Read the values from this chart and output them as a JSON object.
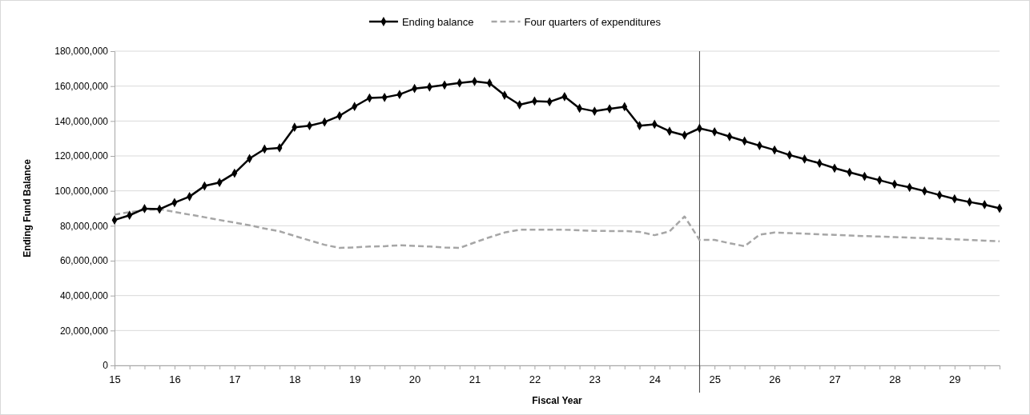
{
  "chart_data": {
    "type": "line",
    "xlabel": "Fiscal Year",
    "ylabel": "Ending Fund Balance",
    "x": [
      15,
      15.25,
      15.5,
      15.75,
      16,
      16.25,
      16.5,
      16.75,
      17,
      17.25,
      17.5,
      17.75,
      18,
      18.25,
      18.5,
      18.75,
      19,
      19.25,
      19.5,
      19.75,
      20,
      20.25,
      20.5,
      20.75,
      21,
      21.25,
      21.5,
      21.75,
      22,
      22.25,
      22.5,
      22.75,
      23,
      23.25,
      23.5,
      23.75,
      24,
      24.25,
      24.5,
      24.75,
      25,
      25.25,
      25.5,
      25.75,
      26,
      26.25,
      26.5,
      26.75,
      27,
      27.25,
      27.5,
      27.75,
      28,
      28.25,
      28.5,
      28.75,
      29,
      29.25,
      29.5,
      29.75
    ],
    "series": [
      {
        "name": "Ending balance",
        "color": "#000000",
        "marker": "diamond",
        "line_style": "solid",
        "values": [
          83300000,
          86000000,
          89800000,
          89500000,
          93300000,
          96700000,
          102800000,
          104800000,
          110100000,
          118500000,
          123900000,
          124600000,
          136400000,
          137300000,
          139400000,
          143000000,
          148300000,
          153200000,
          153500000,
          155200000,
          158600000,
          159500000,
          160600000,
          161800000,
          162700000,
          161700000,
          154800000,
          149300000,
          151400000,
          151000000,
          154000000,
          147300000,
          145600000,
          147000000,
          148200000,
          137300000,
          138100000,
          134100000,
          131800000,
          135800000,
          133800000,
          131100000,
          128500000,
          125900000,
          123400000,
          120500000,
          118200000,
          115800000,
          113000000,
          110600000,
          108300000,
          106100000,
          103800000,
          102000000,
          99900000,
          97600000,
          95400000,
          93600000,
          92100000,
          90000000
        ]
      },
      {
        "name": "Four quarters of expenditures",
        "color": "#a6a6a6",
        "marker": "none",
        "line_style": "dashed",
        "values": [
          86400000,
          87800000,
          89000000,
          89500000,
          87900000,
          86400000,
          84900000,
          83300000,
          81800000,
          80300000,
          78400000,
          76800000,
          74200000,
          71600000,
          69100000,
          67300000,
          67600000,
          68100000,
          68300000,
          68800000,
          68500000,
          68100000,
          67600000,
          67300000,
          70400000,
          73400000,
          76100000,
          77700000,
          77700000,
          77700000,
          77700000,
          77400000,
          77100000,
          77000000,
          77000000,
          76500000,
          74600000,
          76800000,
          85300000,
          71900000,
          71900000,
          70000000,
          68300000,
          74900000,
          76100000,
          75800000,
          75500000,
          75100000,
          74800000,
          74400000,
          74100000,
          73800000,
          73500000,
          73200000,
          72900000,
          72600000,
          72200000,
          71900000,
          71500000,
          71100000
        ]
      }
    ],
    "xlim": [
      15,
      29.75
    ],
    "xticks": [
      15,
      {
        "value": 15.25,
        "label": null
      },
      {
        "value": 15.5,
        "label": null
      },
      {
        "value": 15.75,
        "label": null
      },
      16,
      {
        "value": 16.25,
        "label": null
      },
      {
        "value": 16.5,
        "label": null
      },
      {
        "value": 16.75,
        "label": null
      },
      17,
      {
        "value": 17.25,
        "label": null
      },
      {
        "value": 17.5,
        "label": null
      },
      {
        "value": 17.75,
        "label": null
      },
      18,
      {
        "value": 18.25,
        "label": null
      },
      {
        "value": 18.5,
        "label": null
      },
      {
        "value": 18.75,
        "label": null
      },
      19,
      {
        "value": 19.25,
        "label": null
      },
      {
        "value": 19.5,
        "label": null
      },
      {
        "value": 19.75,
        "label": null
      },
      20,
      {
        "value": 20.25,
        "label": null
      },
      {
        "value": 20.5,
        "label": null
      },
      {
        "value": 20.75,
        "label": null
      },
      21,
      {
        "value": 21.25,
        "label": null
      },
      {
        "value": 21.5,
        "label": null
      },
      {
        "value": 21.75,
        "label": null
      },
      22,
      {
        "value": 22.25,
        "label": null
      },
      {
        "value": 22.5,
        "label": null
      },
      {
        "value": 22.75,
        "label": null
      },
      23,
      {
        "value": 23.25,
        "label": null
      },
      {
        "value": 23.5,
        "label": null
      },
      {
        "value": 23.75,
        "label": null
      },
      24,
      {
        "value": 24.25,
        "label": null
      },
      {
        "value": 24.5,
        "label": null
      },
      {
        "value": 24.75,
        "label": null
      },
      25,
      {
        "value": 25.25,
        "label": null
      },
      {
        "value": 25.5,
        "label": null
      },
      {
        "value": 25.75,
        "label": null
      },
      26,
      {
        "value": 26.25,
        "label": null
      },
      {
        "value": 26.5,
        "label": null
      },
      {
        "value": 26.75,
        "label": null
      },
      27,
      {
        "value": 27.25,
        "label": null
      },
      {
        "value": 27.5,
        "label": null
      },
      {
        "value": 27.75,
        "label": null
      },
      28,
      {
        "value": 28.25,
        "label": null
      },
      {
        "value": 28.5,
        "label": null
      },
      {
        "value": 28.75,
        "label": null
      },
      29,
      {
        "value": 29.25,
        "label": null
      },
      {
        "value": 29.5,
        "label": null
      },
      {
        "value": 29.75,
        "label": null
      }
    ],
    "ylim": [
      0,
      180000000
    ],
    "yticks": [
      0,
      {
        "value": 20000000,
        "label": "20,000,000"
      },
      {
        "value": 40000000,
        "label": "40,000,000"
      },
      {
        "value": 60000000,
        "label": "60,000,000"
      },
      {
        "value": 80000000,
        "label": "80,000,000"
      },
      {
        "value": 100000000,
        "label": "100,000,000"
      },
      {
        "value": 120000000,
        "label": "120,000,000"
      },
      {
        "value": 140000000,
        "label": "140,000,000"
      },
      {
        "value": 160000000,
        "label": "160,000,000"
      },
      {
        "value": 180000000,
        "label": "180,000,000"
      }
    ],
    "grid": "y",
    "legend": "top",
    "ref_lines": [
      {
        "axis": "x",
        "value": 24.75,
        "color": "#404040",
        "line_style": "solid"
      }
    ]
  }
}
